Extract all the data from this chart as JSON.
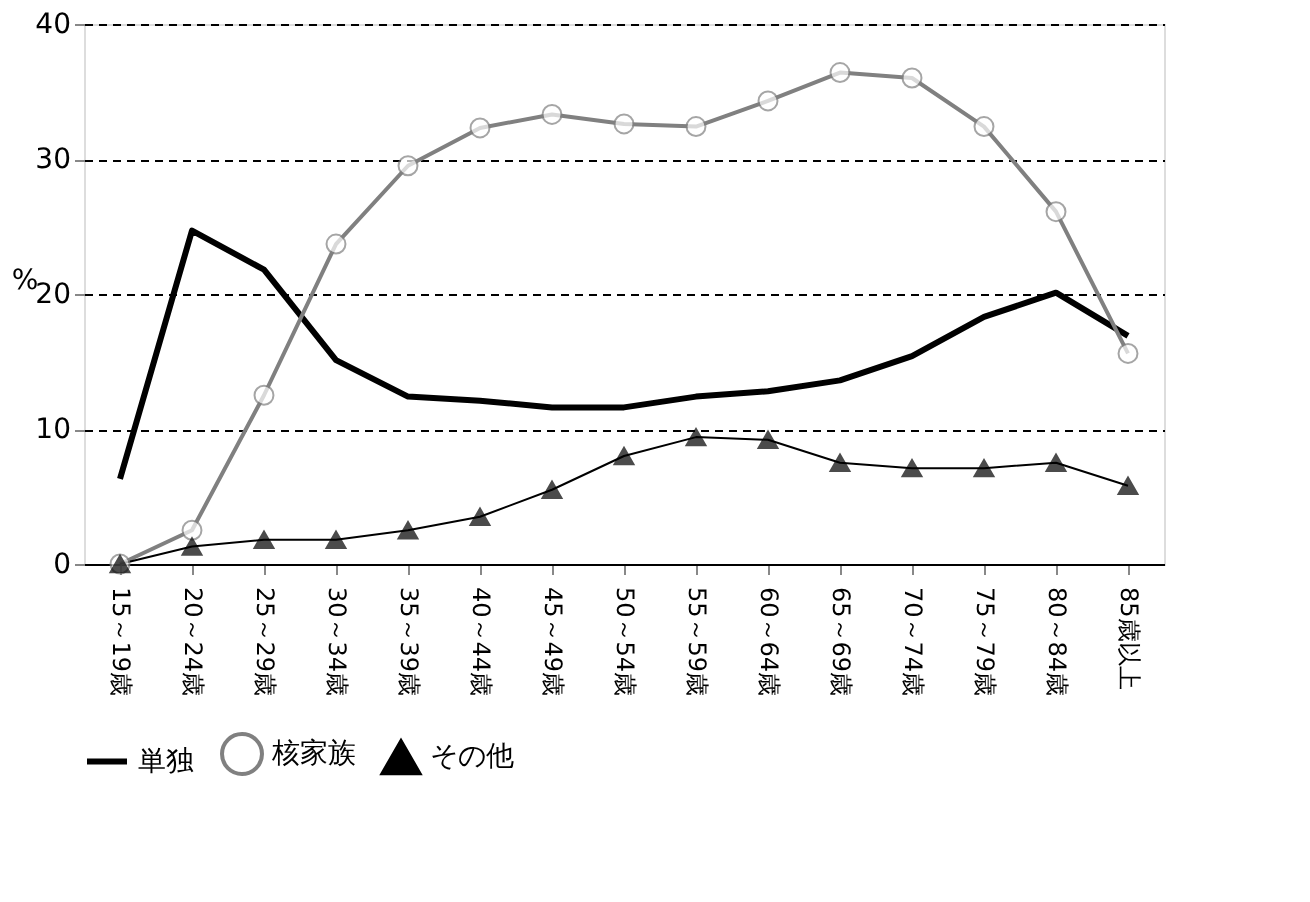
{
  "chart_data": {
    "type": "line",
    "ylabel": "%",
    "categories": [
      "15～19歳",
      "20～24歳",
      "25～29歳",
      "30～34歳",
      "35～39歳",
      "40～44歳",
      "45～49歳",
      "50～54歳",
      "55～59歳",
      "60～64歳",
      "65～69歳",
      "70～74歳",
      "75～79歳",
      "80～84歳",
      "85歳以上"
    ],
    "series": [
      {
        "name": "単独",
        "color": "#000000",
        "marker": "none",
        "values": [
          6.3,
          24.7,
          21.8,
          15.1,
          12.4,
          12.1,
          11.6,
          11.6,
          12.4,
          12.8,
          13.6,
          15.4,
          18.3,
          20.1,
          16.9
        ]
      },
      {
        "name": "核家族",
        "color": "#808080",
        "marker": "circle",
        "values": [
          0,
          2.5,
          12.5,
          23.7,
          29.5,
          32.3,
          33.3,
          32.6,
          32.4,
          34.3,
          36.4,
          36.0,
          32.4,
          26.1,
          15.6
        ]
      },
      {
        "name": "その他",
        "color": "#000000",
        "marker": "triangle",
        "values": [
          0,
          1.3,
          1.8,
          1.8,
          2.5,
          3.5,
          5.5,
          8.0,
          9.4,
          9.2,
          7.5,
          7.1,
          7.1,
          7.5,
          5.8
        ]
      }
    ],
    "ylim": [
      0,
      40
    ],
    "yticks": [
      0,
      10,
      20,
      30,
      40
    ],
    "grid": "y",
    "legend": "bottom"
  }
}
